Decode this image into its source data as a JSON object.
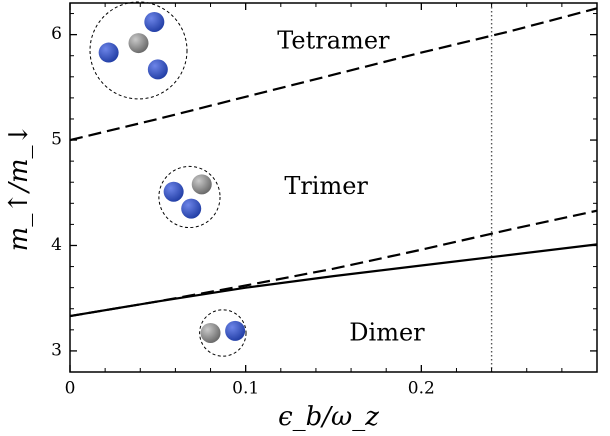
{
  "chart_data": {
    "type": "line",
    "xlabel": "ϵ_b/ω_z",
    "ylabel": "m_↑/m_↓",
    "xlim": [
      0,
      0.3
    ],
    "ylim": [
      2.8,
      6.3
    ],
    "x_ticks": [
      0,
      0.1,
      0.2
    ],
    "x_tick_labels": [
      "0",
      "0.1",
      "0.2"
    ],
    "y_ticks": [
      3,
      4,
      5,
      6
    ],
    "y_tick_labels": [
      "3",
      "4",
      "5",
      "6"
    ],
    "grid": false,
    "series": [
      {
        "style": "dashed",
        "x": [
          0,
          0.05,
          0.1,
          0.15,
          0.2,
          0.25,
          0.3
        ],
        "y": [
          5.0,
          5.2,
          5.41,
          5.62,
          5.83,
          6.03,
          6.25
        ]
      },
      {
        "style": "dashed",
        "x": [
          0,
          0.05,
          0.1,
          0.15,
          0.2,
          0.25,
          0.3
        ],
        "y": [
          3.33,
          3.47,
          3.62,
          3.78,
          3.96,
          4.15,
          4.33
        ]
      },
      {
        "style": "solid",
        "x": [
          0,
          0.05,
          0.1,
          0.15,
          0.2,
          0.25,
          0.3
        ],
        "y": [
          3.33,
          3.47,
          3.6,
          3.71,
          3.81,
          3.91,
          4.01
        ]
      }
    ],
    "vertical_line": {
      "style": "dotted",
      "x": 0.24
    },
    "annotations": [
      {
        "text": "Tetramer",
        "x": 0.118,
        "y": 5.93
      },
      {
        "text": "Trimer",
        "x": 0.122,
        "y": 4.55
      },
      {
        "text": "Dimer",
        "x": 0.159,
        "y": 3.16
      }
    ],
    "clusters": [
      {
        "name": "tetramer",
        "x": 0.039,
        "y": 5.85,
        "r": 0.46,
        "atoms": [
          {
            "kind": "heavy",
            "dx": 0,
            "dy": 0.07
          },
          {
            "kind": "light",
            "dx": 0.009,
            "dy": 0.27
          },
          {
            "kind": "light",
            "dx": -0.017,
            "dy": -0.02
          },
          {
            "kind": "light",
            "dx": 0.011,
            "dy": -0.18
          }
        ]
      },
      {
        "name": "trimer",
        "x": 0.068,
        "y": 4.46,
        "r": 0.29,
        "atoms": [
          {
            "kind": "heavy",
            "dx": 0.007,
            "dy": 0.12
          },
          {
            "kind": "light",
            "dx": -0.009,
            "dy": 0.05
          },
          {
            "kind": "light",
            "dx": 0.001,
            "dy": -0.11
          }
        ]
      },
      {
        "name": "dimer",
        "x": 0.087,
        "y": 3.17,
        "r": 0.22,
        "atoms": [
          {
            "kind": "heavy",
            "dx": -0.007,
            "dy": 0.0
          },
          {
            "kind": "light",
            "dx": 0.007,
            "dy": 0.02
          }
        ]
      }
    ],
    "colors": {
      "light_atom": "#233fa6",
      "light_atom_highlight": "#6d85e8",
      "heavy_atom": "#6a6a6a",
      "heavy_atom_highlight": "#c9c9c9"
    }
  }
}
